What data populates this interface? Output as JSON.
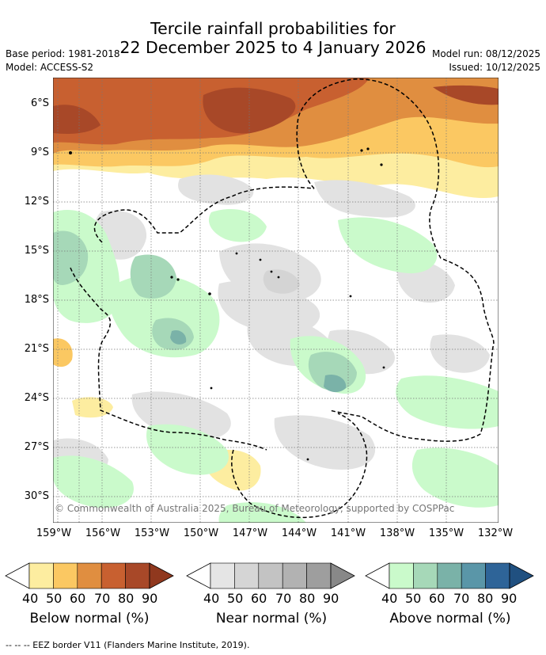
{
  "title": {
    "line1": "Tercile rainfall probabilities for",
    "line2": "22 December 2025 to 4 January 2026"
  },
  "meta": {
    "base_period": "Base period: 1981-2018",
    "model": "Model: ACCESS-S2",
    "model_run": "Model run: 08/12/2025",
    "issued": "Issued: 10/12/2025"
  },
  "map": {
    "lat_labels": [
      "6°S",
      "9°S",
      "12°S",
      "15°S",
      "18°S",
      "21°S",
      "24°S",
      "27°S",
      "30°S"
    ],
    "lon_labels": [
      "159°W",
      "156°W",
      "153°W",
      "150°W",
      "147°W",
      "144°W",
      "141°W",
      "138°W",
      "135°W",
      "132°W"
    ],
    "copyright": "© Commonwealth of Australia 2025, Bureau of Meteorology, supported by COSPPac",
    "colors": {
      "below_40": "#fdeda0",
      "below_50": "#fbc862",
      "below_60": "#e08e40",
      "below_70": "#c86030",
      "below_80": "#a84828",
      "near_40": "#e2e2e2",
      "near_50": "#d4d4d4",
      "above_40": "#cafacb",
      "above_50": "#a6d8b8",
      "above_60": "#7ab2a8"
    }
  },
  "colorbars": {
    "ticks": [
      "40",
      "50",
      "60",
      "70",
      "80",
      "90"
    ],
    "below": {
      "label": "Below normal (%)",
      "colors": [
        "#fdeda0",
        "#fbc862",
        "#e08e40",
        "#c86030",
        "#a84828",
        "#90381e"
      ]
    },
    "near": {
      "label": "Near normal (%)",
      "colors": [
        "#e5e5e5",
        "#d5d5d5",
        "#c3c3c3",
        "#b2b2b2",
        "#9e9e9e",
        "#888888"
      ]
    },
    "above": {
      "label": "Above normal (%)",
      "colors": [
        "#cafacb",
        "#a6d8b8",
        "#7ab2a8",
        "#5a96a8",
        "#2e6498",
        "#205080"
      ]
    }
  },
  "footer": "--  --  -- EEZ border V11 (Flanders Marine Institute, 2019)."
}
